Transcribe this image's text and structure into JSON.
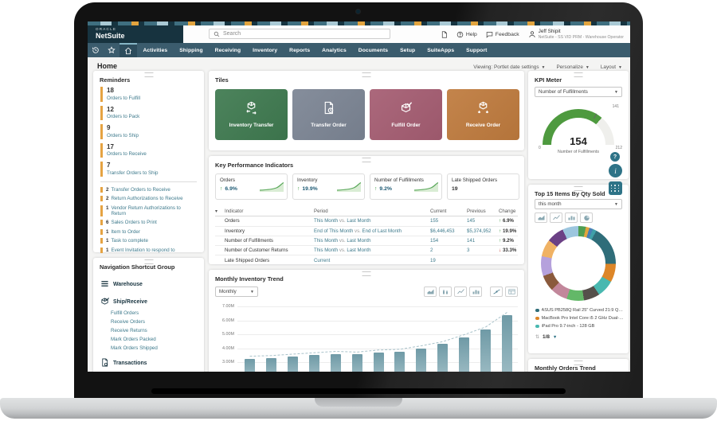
{
  "brand": {
    "oracle": "ORACLE",
    "product": "NetSuite"
  },
  "topbar": {
    "search_placeholder": "Search",
    "help_label": "Help",
    "feedback_label": "Feedback",
    "user_name": "Jeff Shipit",
    "user_role": "NetSuite - SS VID PRM - Warehouse Operator"
  },
  "nav": {
    "items": [
      "Activities",
      "Shipping",
      "Receiving",
      "Inventory",
      "Reports",
      "Analytics",
      "Documents",
      "Setup",
      "SuiteApps",
      "Support"
    ]
  },
  "page_header": {
    "title": "Home",
    "viewing": "Viewing: Portlet date settings",
    "personalize": "Personalize",
    "layout": "Layout"
  },
  "reminders": {
    "title": "Reminders",
    "major": [
      {
        "count": "18",
        "label": "Orders to Fulfill"
      },
      {
        "count": "12",
        "label": "Orders to Pack"
      },
      {
        "count": "9",
        "label": "Orders to Ship"
      },
      {
        "count": "17",
        "label": "Orders to Receive"
      },
      {
        "count": "7",
        "label": "Transfer Orders to Ship"
      }
    ],
    "minor": [
      {
        "count": "2",
        "label": "Transfer Orders to Receive"
      },
      {
        "count": "2",
        "label": "Return Authorizations to Receive"
      },
      {
        "count": "1",
        "label": "Vendor Return Authorizations to Return"
      },
      {
        "count": "6",
        "label": "Sales Orders to Print"
      },
      {
        "count": "1",
        "label": "Item to Order"
      },
      {
        "count": "1",
        "label": "Task to complete"
      },
      {
        "count": "1",
        "label": "Event Invitation to respond to"
      }
    ],
    "accent_color": "#e5a343"
  },
  "shortcuts": {
    "title": "Navigation Shortcut Group",
    "groups": [
      {
        "icon": "menu-icon",
        "label": "Warehouse",
        "links": []
      },
      {
        "icon": "ship-receive-icon",
        "label": "Ship/Receive",
        "links": [
          "Fulfill Orders",
          "Receive Orders",
          "Receive Returns",
          "Mark Orders Packed",
          "Mark Orders Shipped"
        ]
      },
      {
        "icon": "transactions-icon",
        "label": "Transactions",
        "links": [
          "Bin Transfer",
          "Enter Cycle Count",
          "Transfer Orders"
        ]
      }
    ]
  },
  "tiles": {
    "title": "Tiles",
    "items": [
      {
        "label": "Inventory Transfer",
        "color": "#3f7a50",
        "icon": "inventory-transfer-icon"
      },
      {
        "label": "Transfer Order",
        "color": "#7c8594",
        "icon": "transfer-order-icon"
      },
      {
        "label": "Fulfill Order",
        "color": "#a55d72",
        "icon": "fulfill-order-icon"
      },
      {
        "label": "Receive Order",
        "color": "#bf7b3e",
        "icon": "receive-order-icon"
      }
    ]
  },
  "kpis": {
    "title": "Key Performance Indicators",
    "cards": [
      {
        "label": "Orders",
        "direction": "up",
        "change": "6.9%",
        "sparkline": true
      },
      {
        "label": "Inventory",
        "direction": "up",
        "change": "19.9%",
        "sparkline": true
      },
      {
        "label": "Number of Fulfillments",
        "direction": "up",
        "change": "9.2%",
        "sparkline": true
      },
      {
        "label": "Late Shipped Orders",
        "value": "19"
      }
    ],
    "table": {
      "headers": [
        "Indicator",
        "Period",
        "Current",
        "Previous",
        "Change"
      ],
      "rows": [
        {
          "indicator": "Orders",
          "p1": "This Month",
          "vs": "vs.",
          "p2": "Last Month",
          "current": "155",
          "previous": "145",
          "dir": "up",
          "change": "6.9%"
        },
        {
          "indicator": "Inventory",
          "p1": "End of This Month",
          "vs": "vs.",
          "p2": "End of Last Month",
          "current": "$6,446,453",
          "previous": "$5,374,952",
          "dir": "up",
          "change": "19.9%"
        },
        {
          "indicator": "Number of Fulfillments",
          "p1": "This Month",
          "vs": "vs.",
          "p2": "Last Month",
          "current": "154",
          "previous": "141",
          "dir": "up",
          "change": "9.2%"
        },
        {
          "indicator": "Number of Customer Returns",
          "p1": "This Month",
          "vs": "vs.",
          "p2": "Last Month",
          "current": "2",
          "previous": "3",
          "dir": "down",
          "change": "33.3%"
        },
        {
          "indicator": "Late Shipped Orders",
          "p1": "Current",
          "vs": "",
          "p2": "",
          "current": "19",
          "previous": "",
          "dir": "",
          "change": ""
        }
      ]
    },
    "up_color": "#3f9c41",
    "down_color": "#c0392b"
  },
  "inventory_trend": {
    "title": "Monthly Inventory Trend",
    "range_selector": "Monthly",
    "toolbar": [
      "area-chart-icon",
      "stacked-bar-icon",
      "line-chart-icon",
      "bar-chart-icon",
      "trend-line-icon",
      "report-icon"
    ],
    "chart_data": {
      "type": "bar",
      "y_ticks": [
        "7.00M",
        "6.00M",
        "5.00M",
        "4.00M",
        "3.00M"
      ],
      "y_tick_values": [
        7,
        6,
        5,
        4,
        3
      ],
      "values": [
        3.25,
        3.3,
        3.4,
        3.5,
        3.6,
        3.55,
        3.7,
        3.75,
        4.0,
        4.3,
        4.8,
        5.35,
        6.4
      ],
      "bar_color": "#7fa6b1",
      "trend_line": true,
      "grid": true
    }
  },
  "kpi_meter": {
    "title": "KPI Meter",
    "selector": "Number of Fulfillments",
    "value": "154",
    "value_label": "Number of Fulfillments",
    "min": "0",
    "max": "212",
    "marker": "141",
    "arc_color": "#4e9a3f",
    "track_color": "#efefec"
  },
  "top_items": {
    "title": "Top 15 Items By Qty Sold",
    "selector": "this month",
    "toolbar": [
      "area-chart-icon",
      "line-chart-icon",
      "bar-chart-icon",
      "pie-chart-icon"
    ],
    "pagination": "1/8",
    "legend": [
      {
        "color": "#2f6d79",
        "label": "ASUS PB258Q Rail 25\" Curved 21:9 QHD IP…"
      },
      {
        "color": "#dd8628",
        "label": "MacBook Pro Intel Core i5 2 GHz Dual-Core 6…"
      },
      {
        "color": "#49b8b0",
        "label": "iPad Pro 9.7-inch - 128 GB"
      }
    ],
    "chart_data": {
      "type": "pie",
      "slices": [
        {
          "color": "#4f9e52",
          "value": 3
        },
        {
          "color": "#e2a43e",
          "value": 1.5
        },
        {
          "color": "#4a7fb5",
          "value": 1.5
        },
        {
          "color": "#3fa0a8",
          "value": 1.5
        },
        {
          "color": "#2f6d79",
          "value": 16
        },
        {
          "color": "#dd8628",
          "value": 7.5
        },
        {
          "color": "#49b8b0",
          "value": 7
        },
        {
          "color": "#55504b",
          "value": 6.5
        },
        {
          "color": "#63b868",
          "value": 7
        },
        {
          "color": "#c2879b",
          "value": 7
        },
        {
          "color": "#8a5a3c",
          "value": 6.5
        },
        {
          "color": "#b5a1dc",
          "value": 8
        },
        {
          "color": "#f0b264",
          "value": 7
        },
        {
          "color": "#6b4085",
          "value": 7
        },
        {
          "color": "#9cc6de",
          "value": 6.5
        }
      ]
    }
  },
  "orders_trend": {
    "title": "Monthly Orders Trend"
  }
}
